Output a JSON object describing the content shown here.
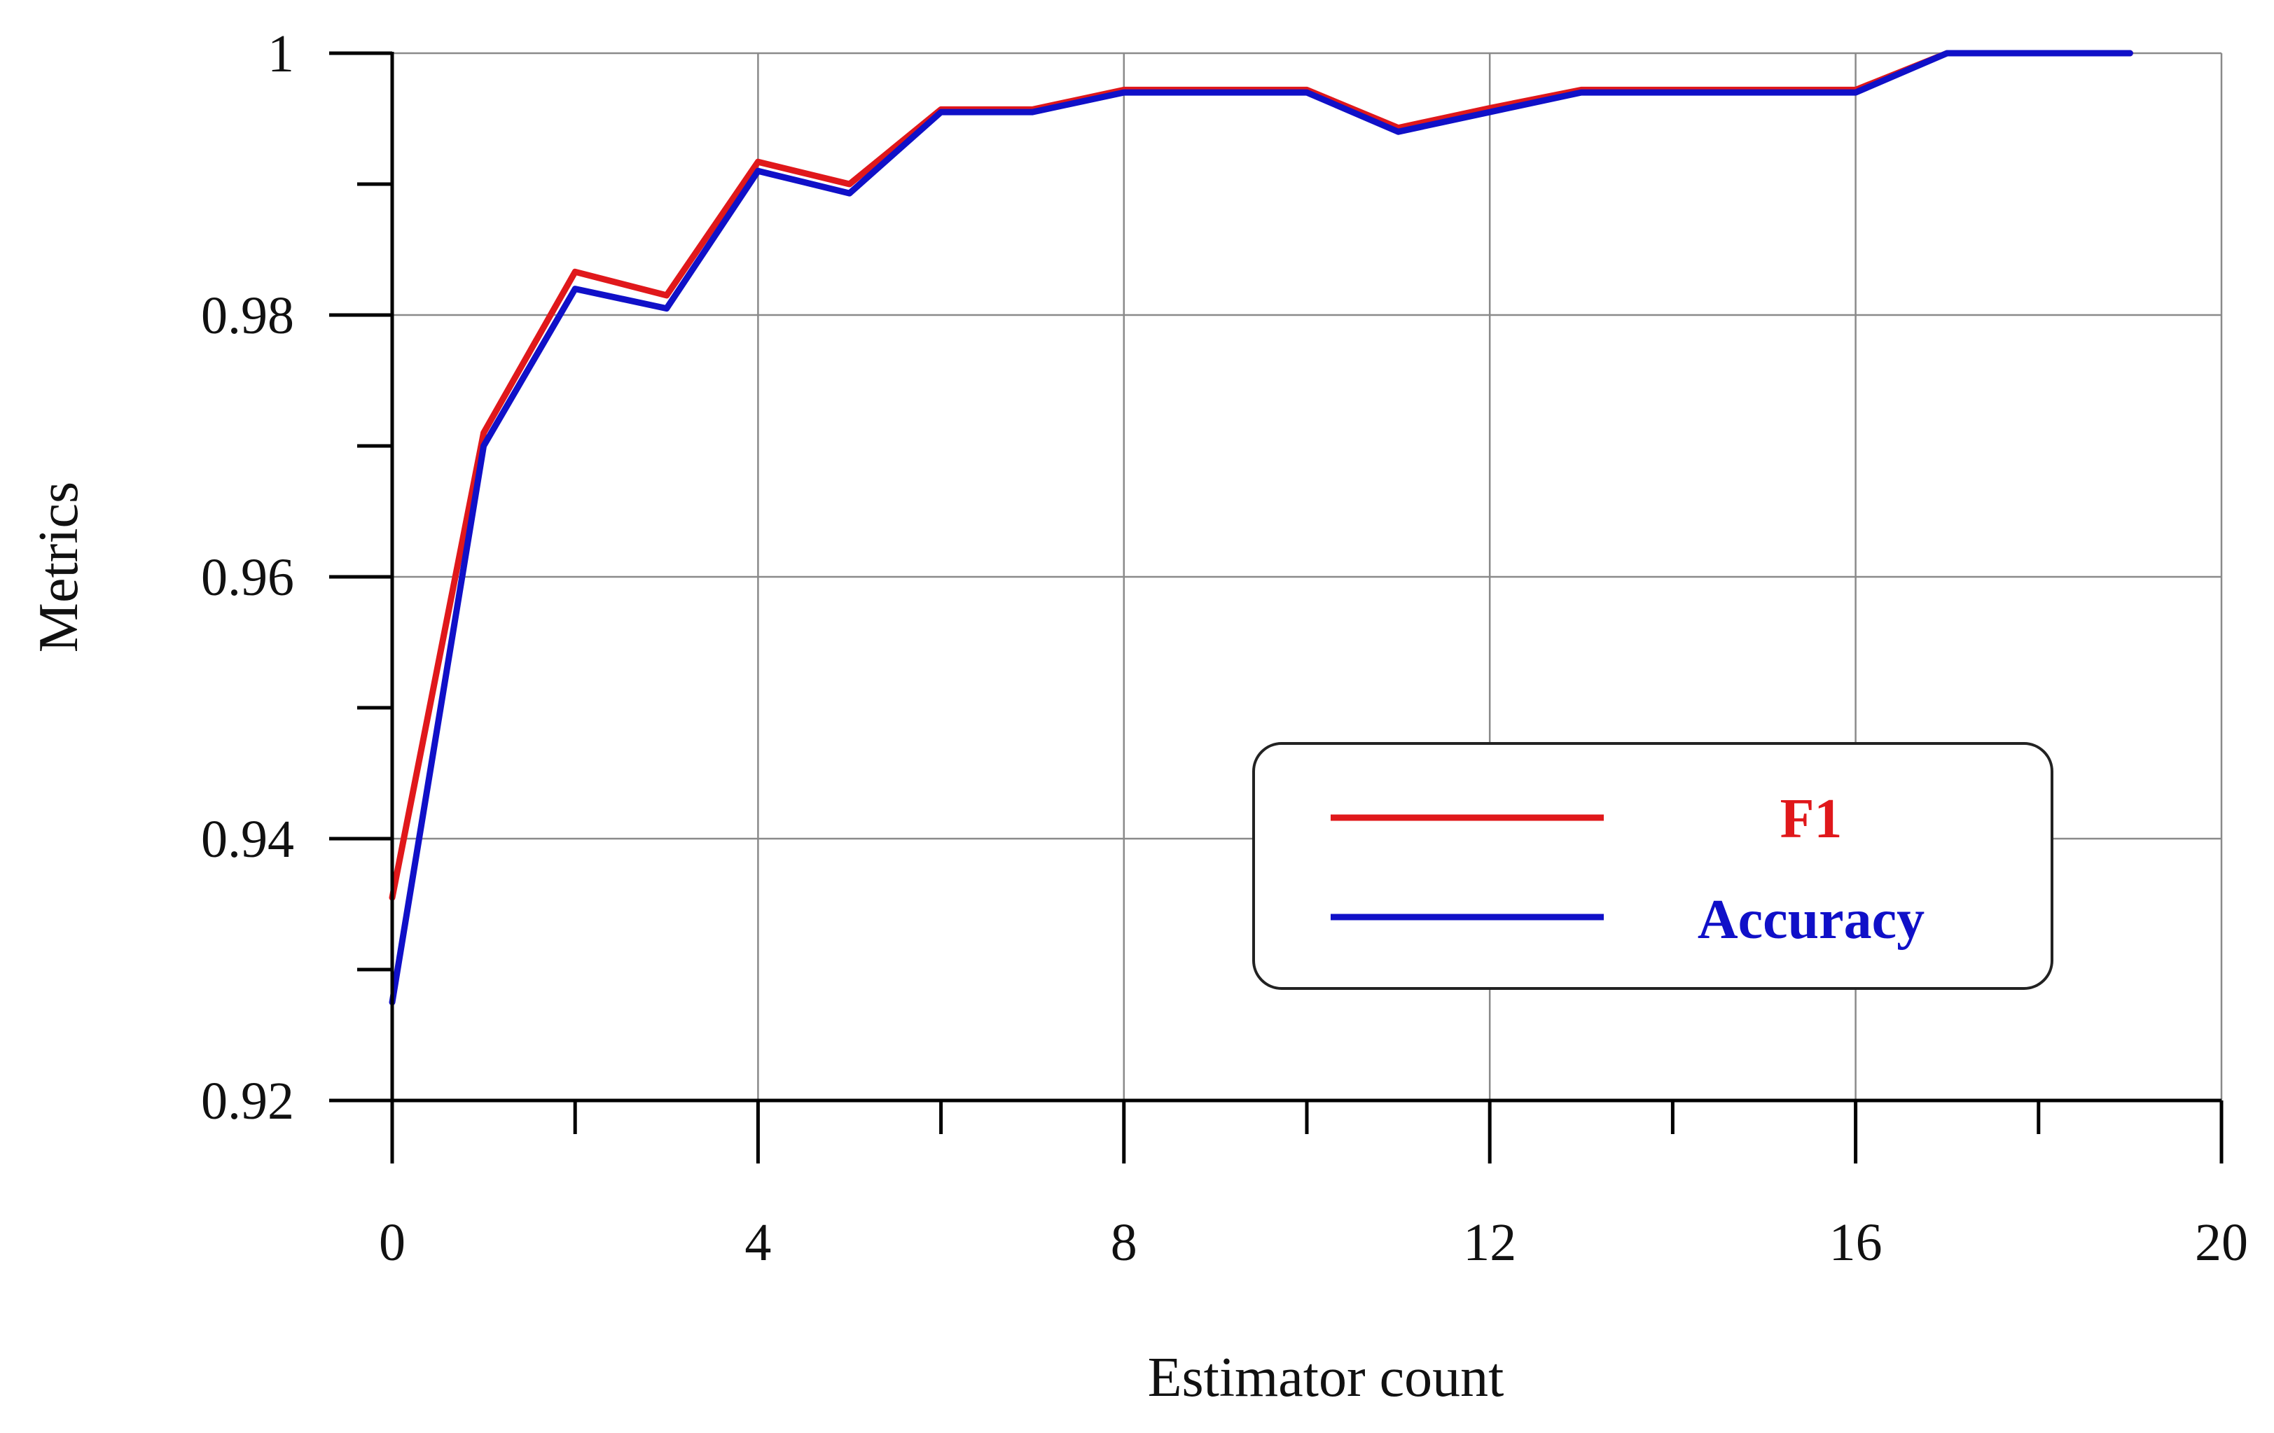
{
  "chart_data": {
    "type": "line",
    "xlabel": "Estimator count",
    "ylabel": "Metrics",
    "xlim": [
      0,
      20
    ],
    "ylim": [
      0.92,
      1.0
    ],
    "xticks": [
      "0",
      "4",
      "8",
      "12",
      "16",
      "20"
    ],
    "yticks": [
      "0.92",
      "0.94",
      "0.96",
      "0.98",
      "1"
    ],
    "grid": true,
    "legend_position": "lower-right",
    "x": [
      0,
      1,
      2,
      3,
      4,
      5,
      6,
      7,
      8,
      9,
      10,
      11,
      12,
      13,
      14,
      15,
      16,
      17,
      18,
      19
    ],
    "series": [
      {
        "name": "F1",
        "color": "#e0181b",
        "values": [
          0.9355,
          0.971,
          0.9833,
          0.9815,
          0.9917,
          0.99,
          0.9957,
          0.9957,
          0.9972,
          0.9972,
          0.9972,
          0.9943,
          0.9958,
          0.9972,
          0.9972,
          0.9972,
          0.9972,
          1.0,
          1.0,
          1.0
        ]
      },
      {
        "name": "Accuracy",
        "color": "#1010c8",
        "values": [
          0.9275,
          0.97,
          0.982,
          0.9805,
          0.991,
          0.9893,
          0.9955,
          0.9955,
          0.997,
          0.997,
          0.997,
          0.994,
          0.9955,
          0.997,
          0.997,
          0.997,
          0.997,
          1.0,
          1.0,
          1.0
        ]
      }
    ]
  }
}
